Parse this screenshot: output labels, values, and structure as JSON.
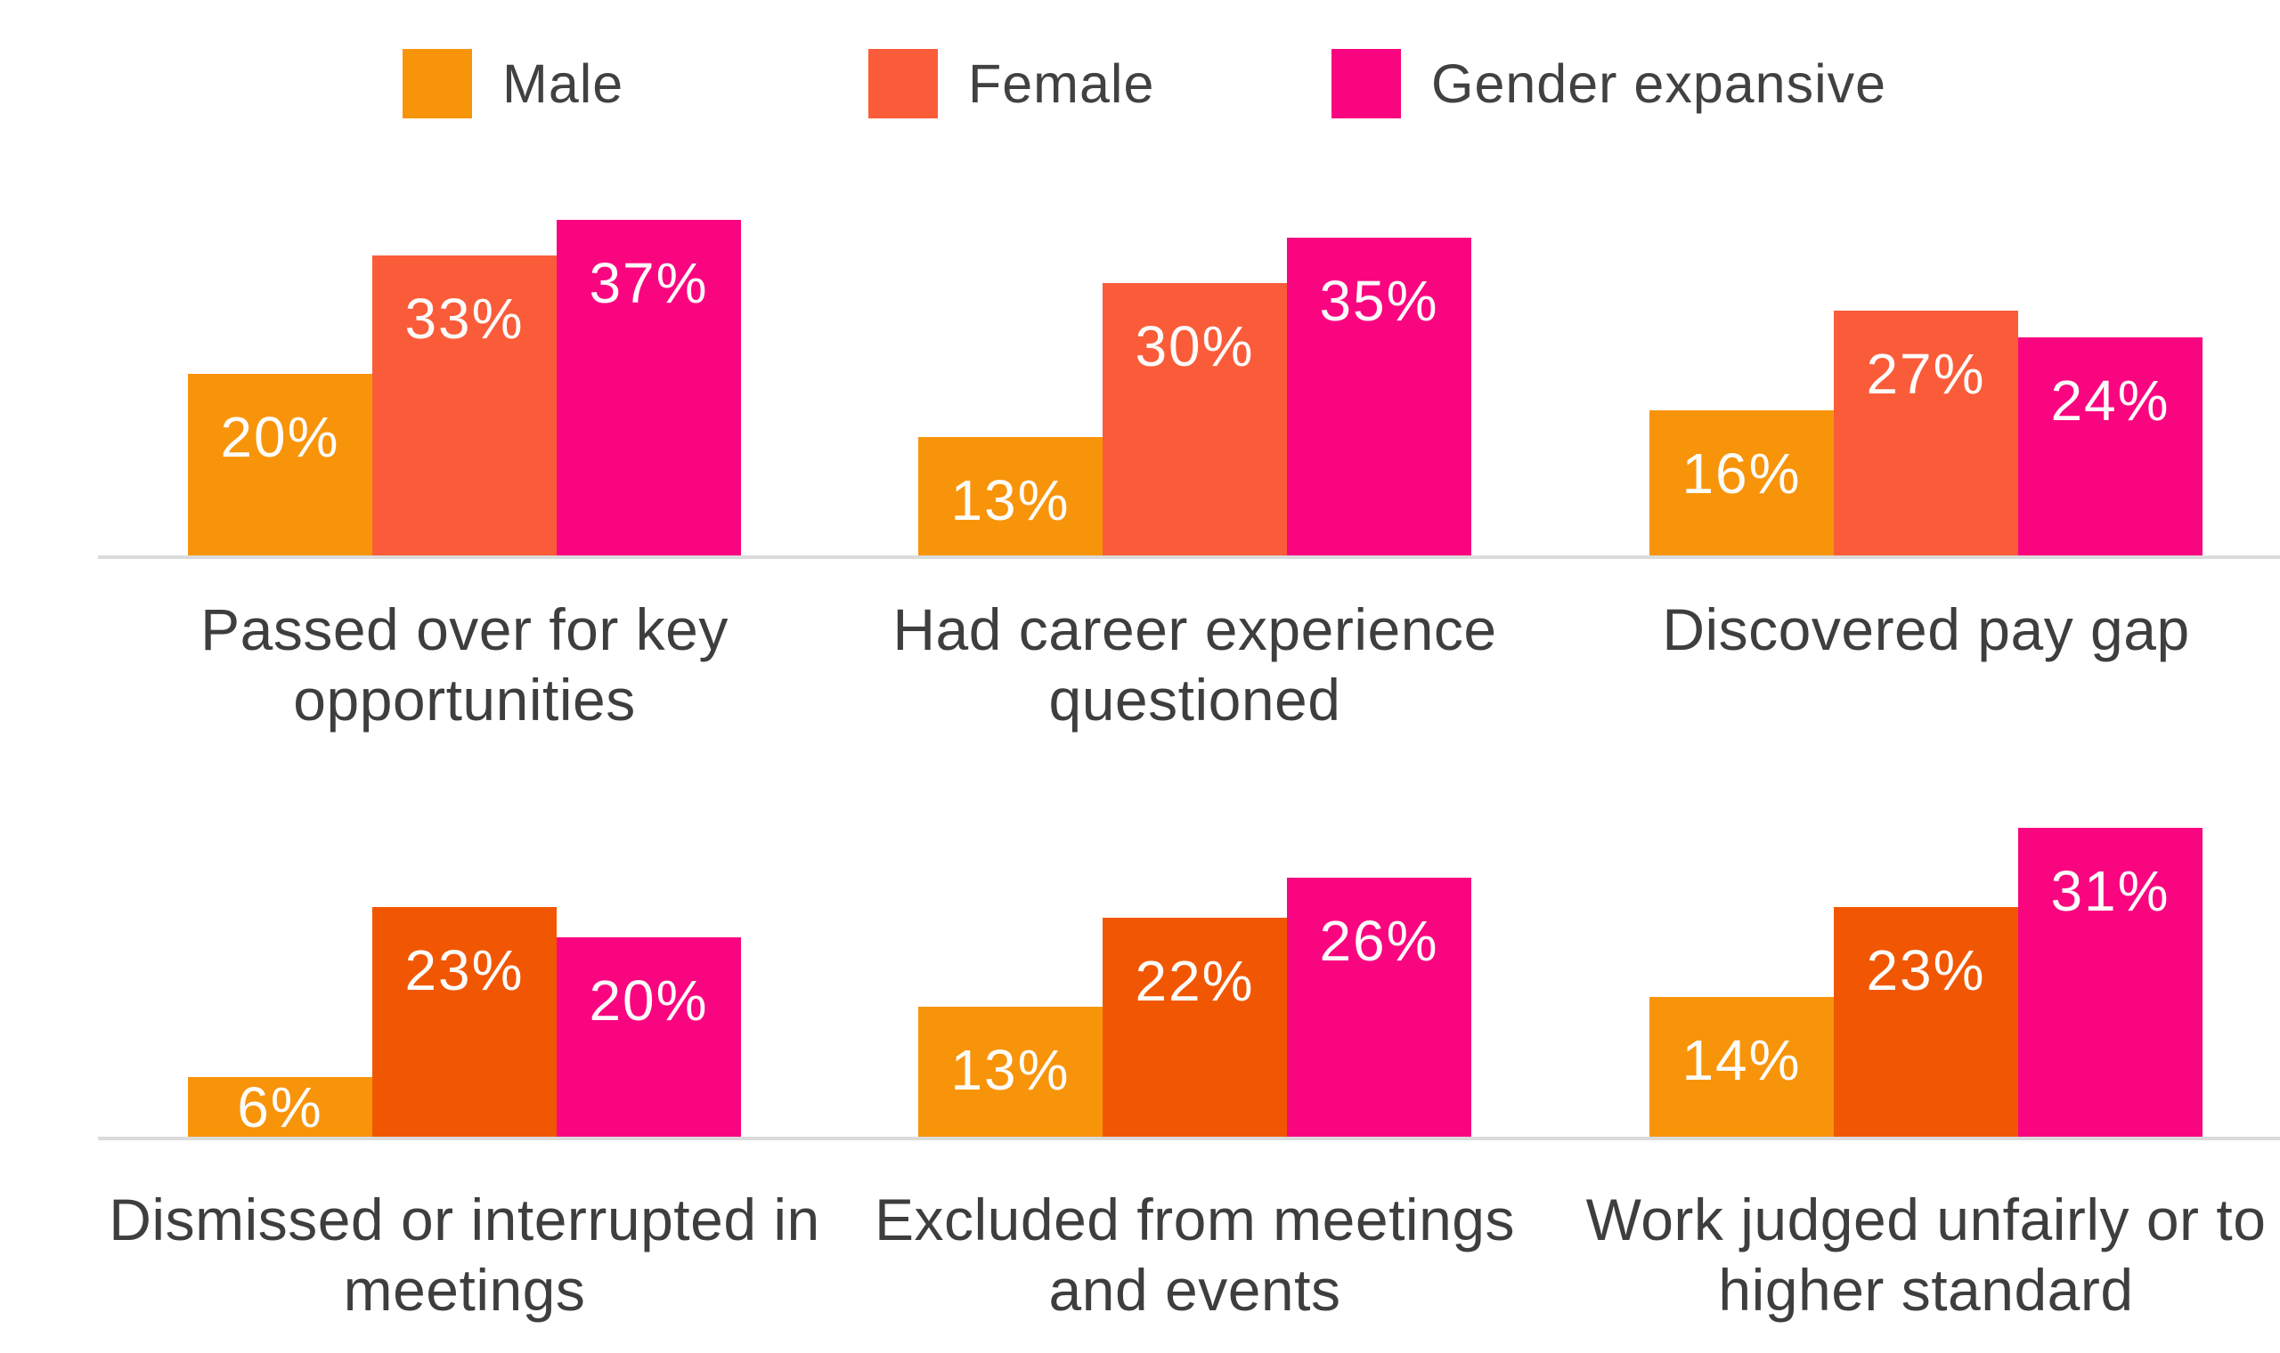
{
  "chart_data": {
    "type": "bar",
    "title": "",
    "unit": "percent",
    "value_suffix": "%",
    "legend_position": "top",
    "grid": false,
    "axes": "hidden, light-gray baseline only, no tick labels",
    "ylim": [
      0,
      40
    ],
    "series_names": [
      "Male",
      "Female",
      "Gender expansive"
    ],
    "legend": [
      {
        "label": "Male",
        "color": "#F8940A"
      },
      {
        "label": "Female",
        "color": "#FA5C39"
      },
      {
        "label": "Gender expansive",
        "color": "#FA0580"
      }
    ],
    "categories": [
      "Passed over for key opportunities",
      "Had career experience questioned",
      "Discovered pay gap",
      "Dismissed or interrupted in meetings",
      "Excluded from meetings and events",
      "Work judged unfairly or to higher standard"
    ],
    "groups": [
      {
        "label": "Passed over for key opportunities",
        "label_lines": [
          "Passed over for key",
          "opportunities"
        ],
        "values": [
          20,
          33,
          37
        ],
        "value_labels": [
          "20%",
          "33%",
          "37%"
        ],
        "colors": [
          "#F8940A",
          "#FA5C39",
          "#FA0580"
        ]
      },
      {
        "label": "Had career experience questioned",
        "label_lines": [
          "Had career experience",
          "questioned"
        ],
        "values": [
          13,
          30,
          35
        ],
        "value_labels": [
          "13%",
          "30%",
          "35%"
        ],
        "colors": [
          "#F8940A",
          "#FA5C39",
          "#FA0580"
        ]
      },
      {
        "label": "Discovered pay gap",
        "label_lines": [
          "Discovered pay gap"
        ],
        "values": [
          16,
          27,
          24
        ],
        "value_labels": [
          "16%",
          "27%",
          "24%"
        ],
        "colors": [
          "#F8940A",
          "#FA5C39",
          "#FA0580"
        ]
      },
      {
        "label": "Dismissed or interrupted in meetings",
        "label_lines": [
          "Dismissed or interrupted in",
          "meetings"
        ],
        "values": [
          6,
          23,
          20
        ],
        "value_labels": [
          "6%",
          "23%",
          "20%"
        ],
        "colors": [
          "#F8940A",
          "#F15702",
          "#FA0580"
        ]
      },
      {
        "label": "Excluded from meetings and events",
        "label_lines": [
          "Excluded from meetings",
          "and events"
        ],
        "values": [
          13,
          22,
          26
        ],
        "value_labels": [
          "13%",
          "22%",
          "26%"
        ],
        "colors": [
          "#F8940A",
          "#F15702",
          "#FA0580"
        ]
      },
      {
        "label": "Work judged unfairly or to higher standard",
        "label_lines": [
          "Work judged unfairly or to",
          "higher standard"
        ],
        "values": [
          14,
          23,
          31
        ],
        "value_labels": [
          "14%",
          "23%",
          "31%"
        ],
        "colors": [
          "#F8940A",
          "#F15702",
          "#FA0580"
        ]
      }
    ]
  },
  "colors": {
    "background": "#FFFFFF",
    "baseline": "#DBDBDB",
    "category_text": "#3E3E3E",
    "legend_text": "#414141",
    "value_text": "#FDFCFB"
  }
}
